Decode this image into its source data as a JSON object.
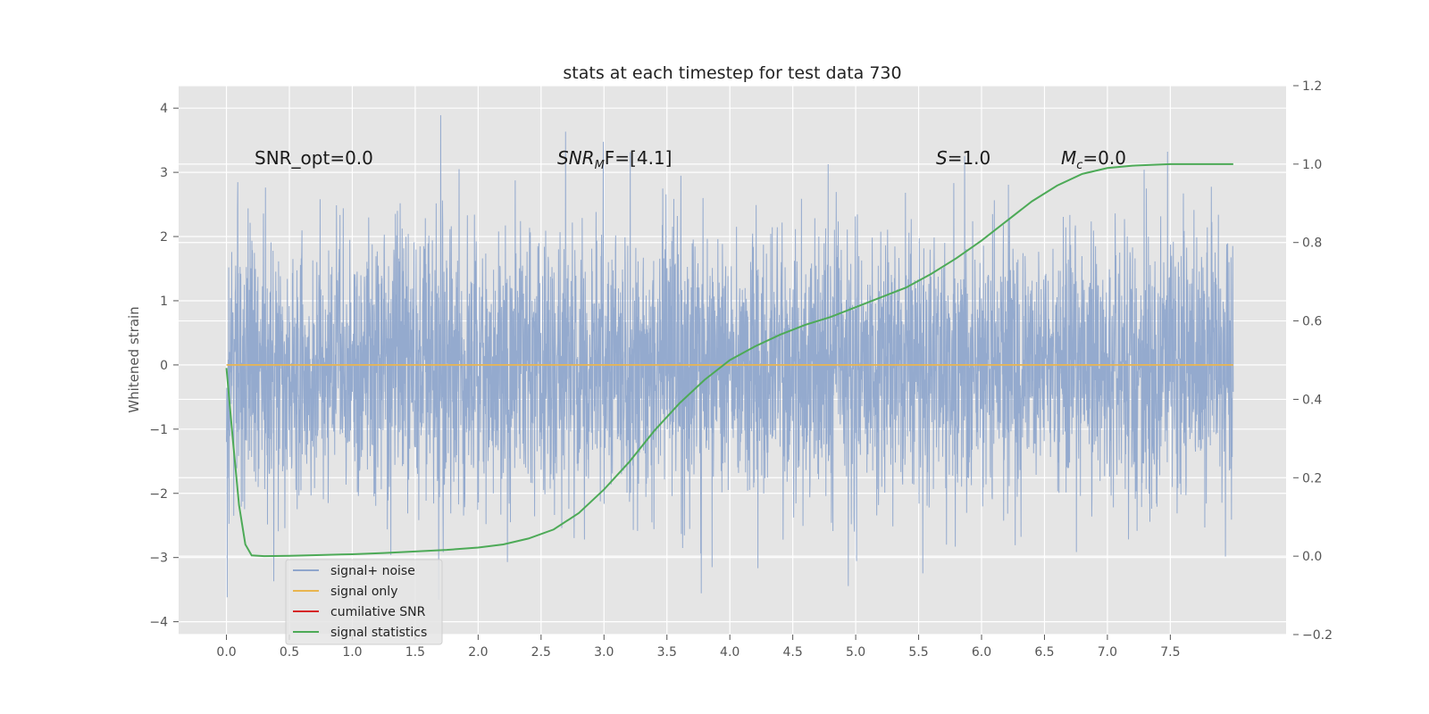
{
  "chart_data": {
    "type": "line",
    "title": "stats at each timestep for test data 730",
    "ylabel": "Whitened strain",
    "xlim": [
      -0.38,
      8.42
    ],
    "ylim": [
      -4.2,
      4.35
    ],
    "y2lim": [
      -0.2,
      1.2
    ],
    "x_ticks": [
      "0.0",
      "0.5",
      "1.0",
      "1.5",
      "2.0",
      "2.5",
      "3.0",
      "3.5",
      "4.0",
      "4.5",
      "5.0",
      "5.5",
      "6.0",
      "6.5",
      "7.0",
      "7.5"
    ],
    "y_ticks": [
      "−4",
      "−3",
      "−2",
      "−1",
      "0",
      "1",
      "2",
      "3",
      "4"
    ],
    "y2_ticks": [
      "−0.2",
      "0.0",
      "0.2",
      "0.4",
      "0.6",
      "0.8",
      "1.0",
      "1.2"
    ],
    "grid": true,
    "legend_position": "lower-left",
    "series": [
      {
        "name": "signal+ noise",
        "color": "#8fa6cc",
        "axis": "left",
        "description_range": [
          -3.8,
          4.0
        ],
        "x_range": [
          0.0,
          8.0
        ]
      },
      {
        "name": "signal only",
        "color": "#e9b550",
        "axis": "left",
        "x": [
          0.0,
          8.0
        ],
        "y": [
          0.0,
          0.0
        ]
      },
      {
        "name": "cumilative SNR",
        "color": "#d62728",
        "axis": "left",
        "x": [],
        "y": []
      },
      {
        "name": "signal statistics",
        "color": "#4daa57",
        "axis": "right",
        "x": [
          0.0,
          0.05,
          0.1,
          0.15,
          0.2,
          0.3,
          0.5,
          0.75,
          1.0,
          1.25,
          1.5,
          1.75,
          2.0,
          2.2,
          2.4,
          2.6,
          2.8,
          3.0,
          3.2,
          3.4,
          3.6,
          3.8,
          4.0,
          4.2,
          4.4,
          4.6,
          4.8,
          5.0,
          5.2,
          5.4,
          5.6,
          5.8,
          6.0,
          6.2,
          6.4,
          6.6,
          6.8,
          7.0,
          7.2,
          7.5,
          8.0
        ],
        "y": [
          0.48,
          0.3,
          0.13,
          0.03,
          0.002,
          0.0,
          0.001,
          0.003,
          0.005,
          0.008,
          0.012,
          0.016,
          0.022,
          0.03,
          0.045,
          0.068,
          0.11,
          0.17,
          0.24,
          0.32,
          0.39,
          0.45,
          0.5,
          0.535,
          0.565,
          0.59,
          0.61,
          0.635,
          0.66,
          0.685,
          0.72,
          0.76,
          0.805,
          0.855,
          0.905,
          0.945,
          0.975,
          0.99,
          0.996,
          1.0,
          1.0
        ]
      }
    ],
    "annotations": {
      "snr_opt": "SNR_opt=0.0",
      "snr_mf_main": "SNR",
      "snr_mf_sub": "M",
      "snr_mf_tail": "F=[4.1]",
      "s_main": "S",
      "s_tail": "=1.0",
      "mc_main": "M",
      "mc_sub": "c",
      "mc_tail": "=0.0"
    }
  }
}
